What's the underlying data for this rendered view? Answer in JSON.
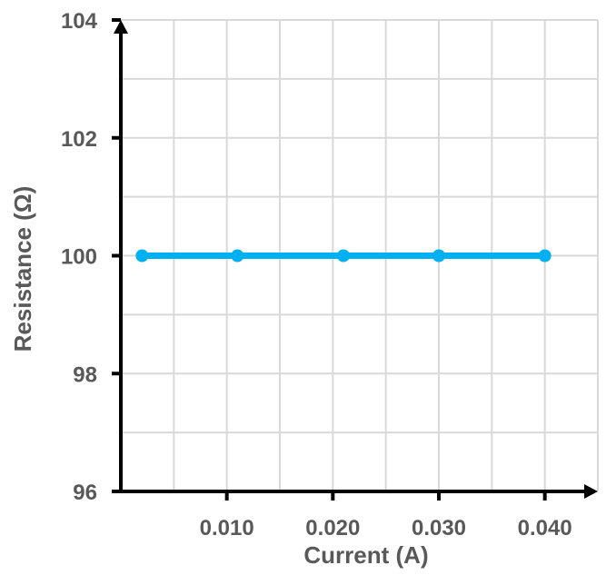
{
  "chart_data": {
    "type": "line",
    "title": "",
    "xlabel": "Current (A)",
    "ylabel": "Resistance (Ω)",
    "xlim": [
      0,
      0.045
    ],
    "ylim": [
      96,
      104
    ],
    "x_ticks": [
      0.01,
      0.02,
      0.03,
      0.04
    ],
    "x_tick_labels": [
      "0.010",
      "0.020",
      "0.030",
      "0.040"
    ],
    "y_ticks": [
      96,
      98,
      100,
      102,
      104
    ],
    "y_tick_labels": [
      "96",
      "98",
      "100",
      "102",
      "104"
    ],
    "grid": true,
    "series": [
      {
        "color": "#00b0f0",
        "x": [
          0.002,
          0.011,
          0.021,
          0.03,
          0.04
        ],
        "y": [
          100,
          100,
          100,
          100,
          100
        ]
      }
    ]
  },
  "colors": {
    "axis": "#000000",
    "grid": "#d9d9d9",
    "text": "#595959"
  }
}
